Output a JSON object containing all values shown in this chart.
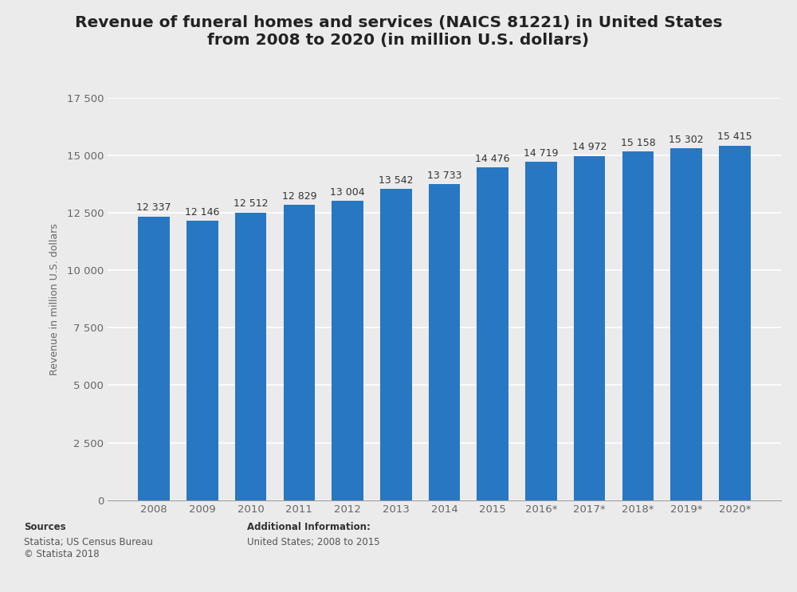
{
  "title_line1": "Revenue of funeral homes and services (NAICS 81221) in United States",
  "title_line2": "from 2008 to 2020 (in million U.S. dollars)",
  "ylabel": "Revenue in million U.S. dollars",
  "categories": [
    "2008",
    "2009",
    "2010",
    "2011",
    "2012",
    "2013",
    "2014",
    "2015",
    "2016*",
    "2017*",
    "2018*",
    "2019*",
    "2020*"
  ],
  "values": [
    12337,
    12146,
    12512,
    12829,
    13004,
    13542,
    13733,
    14476,
    14719,
    14972,
    15158,
    15302,
    15415
  ],
  "bar_color": "#2877C2",
  "bar_labels": [
    "12 337",
    "12 146",
    "12 512",
    "12 829",
    "13 004",
    "13 542",
    "13 733",
    "14 476",
    "14 719",
    "14 972",
    "15 158",
    "15 302",
    "15 415"
  ],
  "ylim": [
    0,
    17500
  ],
  "yticks": [
    0,
    2500,
    5000,
    7500,
    10000,
    12500,
    15000,
    17500
  ],
  "ytick_labels": [
    "0",
    "2 500",
    "5 000",
    "7 500",
    "10 000",
    "12 500",
    "15 000",
    "17 500"
  ],
  "title_fontsize": 14.5,
  "label_fontsize": 9,
  "ylabel_fontsize": 9,
  "tick_fontsize": 9.5,
  "background_color": "#ebebeb",
  "plot_bg_color": "#ebebeb",
  "grid_color": "#ffffff",
  "sources_label": "Sources",
  "sources_body": "Statista; US Census Bureau\n© Statista 2018",
  "additional_info_title": "Additional Information:",
  "additional_info_text": "United States; 2008 to 2015",
  "footer_bg_color": "#d9d9d9"
}
